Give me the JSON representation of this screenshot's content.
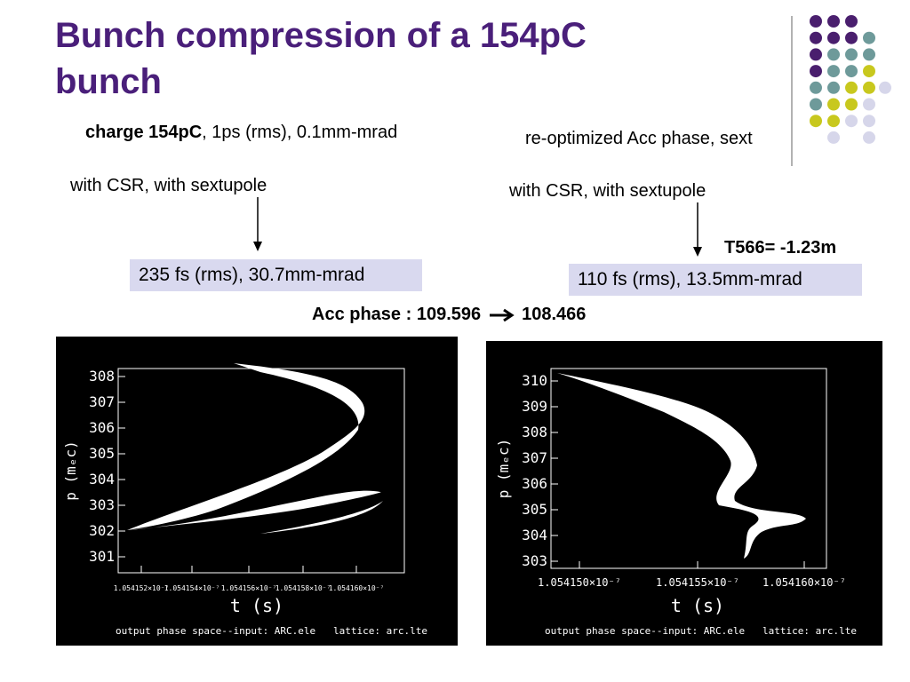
{
  "slide": {
    "title": "Bunch compression of a 154pC bunch",
    "beam_note": {
      "bold": "charge 154pC",
      "rest": ", 1ps (rms), 0.1mm-mrad"
    },
    "right_note": "re-optimized Acc phase, sext",
    "left_setting": "with CSR, with sextupole",
    "right_setting": "with CSR, with sextupole",
    "left_result": "235 fs (rms), 30.7mm-mrad",
    "right_result": "110 fs (rms), 13.5mm-mrad",
    "t566": "T566= -1.23m",
    "acc_phase_from": "Acc phase : 109.596",
    "acc_phase_to": "108.466"
  },
  "plots": [
    {
      "y_label": "p (mₑc)",
      "x_label": "t (s)",
      "yticks": [
        "308",
        "307",
        "306",
        "305",
        "304",
        "303",
        "302",
        "301"
      ],
      "xticks": [
        "1.054152×10⁻⁷",
        "1.054154×10⁻⁷",
        "1.054156×10⁻⁷",
        "1.054158×10⁻⁷",
        "1.054160×10⁻⁷"
      ],
      "caption": "output phase space--input: ARC.ele   lattice: arc.lte"
    },
    {
      "y_label": "p (mₑc)",
      "x_label": "t (s)",
      "yticks": [
        "310",
        "309",
        "308",
        "307",
        "306",
        "305",
        "304",
        "303"
      ],
      "xticks": [
        "1.054150×10⁻⁷",
        "1.054155×10⁻⁷",
        "1.054160×10⁻⁷"
      ],
      "caption": "output phase space--input: ARC.ele   lattice: arc.lte"
    }
  ]
}
